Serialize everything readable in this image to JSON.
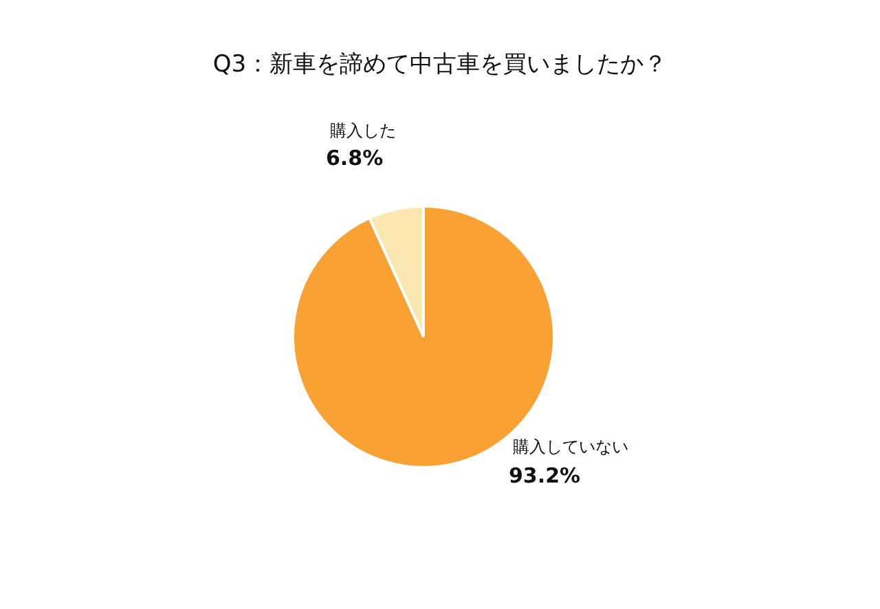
{
  "chart_data": {
    "type": "pie",
    "title": "Q3：新車を諦めて中古車を買いましたか？",
    "categories": [
      "購入した",
      "購入していない"
    ],
    "values": [
      6.8,
      93.2
    ],
    "value_labels": [
      "6.8%",
      "93.2%"
    ],
    "colors": [
      "#fde7b0",
      "#f9a233"
    ]
  }
}
